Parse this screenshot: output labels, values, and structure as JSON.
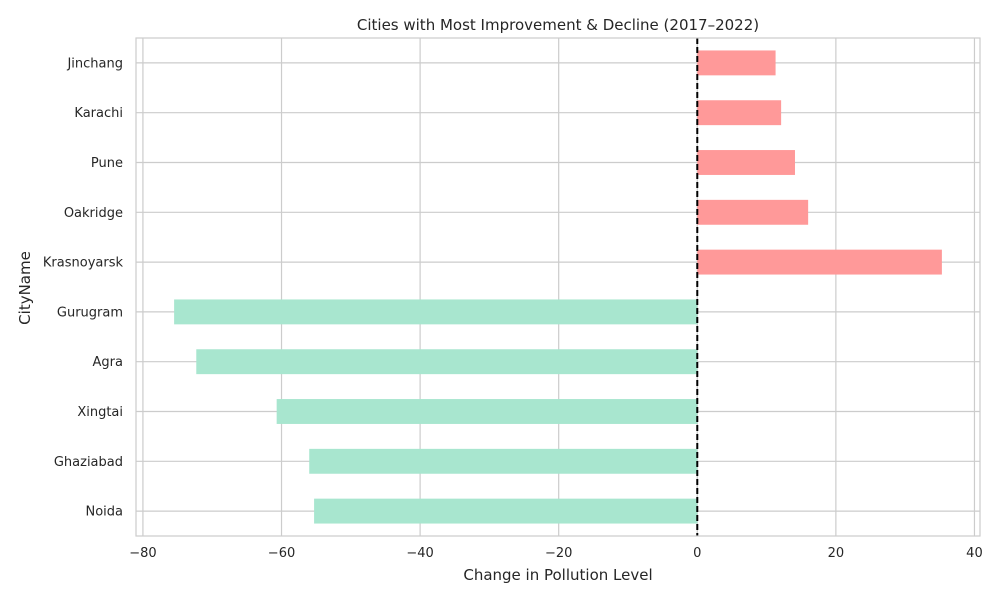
{
  "chart_data": {
    "type": "bar",
    "orientation": "horizontal",
    "title": "Cities with Most Improvement & Decline (2017–2022)",
    "xlabel": "Change in Pollution Level",
    "ylabel": "CityName",
    "xlim": [
      -81,
      40.8
    ],
    "xticks": [
      -80,
      -60,
      -40,
      -20,
      0,
      20,
      40
    ],
    "xtick_labels": [
      "−80",
      "−60",
      "−40",
      "−20",
      "0",
      "20",
      "40"
    ],
    "grid": true,
    "reference_line": {
      "x": 0,
      "style": "dashed",
      "color": "#000000"
    },
    "categories": [
      "Noida",
      "Ghaziabad",
      "Xingtai",
      "Agra",
      "Gurugram",
      "Krasnoyarsk",
      "Oakridge",
      "Pune",
      "Karachi",
      "Jinchang"
    ],
    "values": [
      -55.3,
      -56.0,
      -60.7,
      -72.3,
      -75.5,
      35.3,
      16.0,
      14.1,
      12.1,
      11.3
    ],
    "colors": {
      "decline": "#ff9999",
      "improvement": "#a8e6cf"
    }
  }
}
